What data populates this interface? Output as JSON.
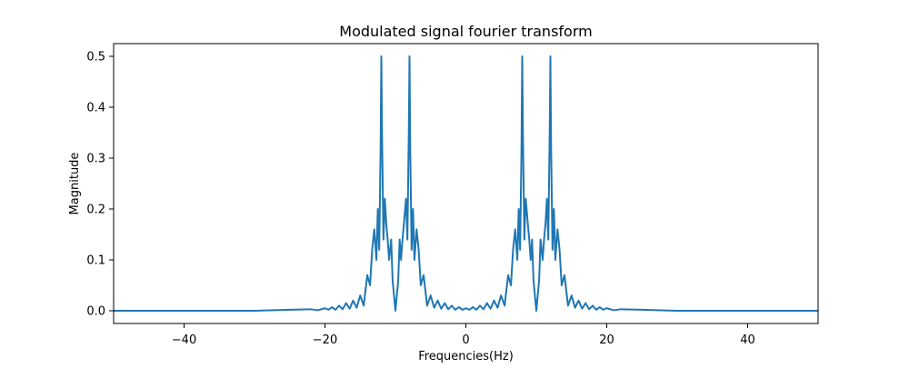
{
  "chart_data": {
    "type": "line",
    "title": "Modulated signal fourier transform",
    "xlabel": "Frequencies(Hz)",
    "ylabel": "Magnitude",
    "xlim": [
      -50,
      50
    ],
    "ylim": [
      -0.025,
      0.525
    ],
    "xticks": [
      -40,
      -20,
      0,
      20,
      40
    ],
    "xtick_labels": [
      "−40",
      "−20",
      "0",
      "20",
      "40"
    ],
    "yticks": [
      0.0,
      0.1,
      0.2,
      0.3,
      0.4,
      0.5
    ],
    "ytick_labels": [
      "0.0",
      "0.1",
      "0.2",
      "0.3",
      "0.4",
      "0.5"
    ],
    "grid": false,
    "series": [
      {
        "color": "#1f77b4",
        "x": [
          -50,
          -30,
          -25,
          -22,
          -21,
          -20,
          -19.5,
          -19,
          -18.5,
          -18,
          -17.5,
          -17,
          -16.5,
          -16,
          -15.5,
          -15,
          -14.5,
          -14,
          -13.6,
          -13.3,
          -13,
          -12.7,
          -12.5,
          -12.3,
          -12.1,
          -12,
          -11.9,
          -11.7,
          -11.5,
          -11.3,
          -11.1,
          -10.9,
          -10.6,
          -10.4,
          -10.2,
          -10,
          -9.8,
          -9.6,
          -9.4,
          -9.2,
          -9,
          -8.8,
          -8.5,
          -8.3,
          -8.1,
          -8,
          -7.9,
          -7.7,
          -7.5,
          -7.3,
          -7,
          -6.7,
          -6.4,
          -6,
          -5.5,
          -5,
          -4.5,
          -4,
          -3.5,
          -3,
          -2.5,
          -2,
          -1.5,
          -1,
          -0.5,
          0,
          0.5,
          1,
          1.5,
          2,
          2.5,
          3,
          3.5,
          4,
          4.5,
          5,
          5.5,
          6,
          6.4,
          6.7,
          7,
          7.3,
          7.5,
          7.7,
          7.9,
          8,
          8.1,
          8.3,
          8.5,
          8.8,
          9,
          9.2,
          9.4,
          9.6,
          9.8,
          10,
          10.2,
          10.4,
          10.6,
          10.9,
          11.1,
          11.3,
          11.5,
          11.7,
          11.9,
          12,
          12.1,
          12.3,
          12.5,
          12.7,
          13,
          13.3,
          13.6,
          14,
          14.5,
          15,
          15.5,
          16,
          16.5,
          17,
          17.5,
          18,
          18.5,
          19,
          19.5,
          20,
          21,
          22,
          25,
          30,
          50
        ],
        "y": [
          0.0,
          0.0,
          0.002,
          0.003,
          0.001,
          0.005,
          0.002,
          0.007,
          0.002,
          0.01,
          0.003,
          0.015,
          0.004,
          0.02,
          0.006,
          0.03,
          0.01,
          0.07,
          0.05,
          0.12,
          0.16,
          0.1,
          0.2,
          0.12,
          0.32,
          0.5,
          0.35,
          0.14,
          0.22,
          0.17,
          0.14,
          0.1,
          0.14,
          0.06,
          0.03,
          0.0,
          0.03,
          0.06,
          0.14,
          0.1,
          0.14,
          0.17,
          0.22,
          0.14,
          0.35,
          0.5,
          0.32,
          0.12,
          0.2,
          0.1,
          0.16,
          0.12,
          0.05,
          0.07,
          0.01,
          0.03,
          0.006,
          0.02,
          0.004,
          0.015,
          0.003,
          0.01,
          0.002,
          0.007,
          0.002,
          0.005,
          0.002,
          0.007,
          0.002,
          0.01,
          0.003,
          0.015,
          0.004,
          0.02,
          0.006,
          0.03,
          0.01,
          0.07,
          0.05,
          0.12,
          0.16,
          0.1,
          0.2,
          0.12,
          0.32,
          0.5,
          0.35,
          0.14,
          0.22,
          0.17,
          0.14,
          0.1,
          0.14,
          0.06,
          0.03,
          0.0,
          0.03,
          0.06,
          0.14,
          0.1,
          0.14,
          0.17,
          0.22,
          0.14,
          0.35,
          0.5,
          0.32,
          0.12,
          0.2,
          0.1,
          0.16,
          0.12,
          0.05,
          0.07,
          0.01,
          0.03,
          0.006,
          0.02,
          0.004,
          0.015,
          0.003,
          0.01,
          0.002,
          0.007,
          0.002,
          0.005,
          0.001,
          0.003,
          0.002,
          0.0,
          0.0
        ]
      }
    ]
  }
}
